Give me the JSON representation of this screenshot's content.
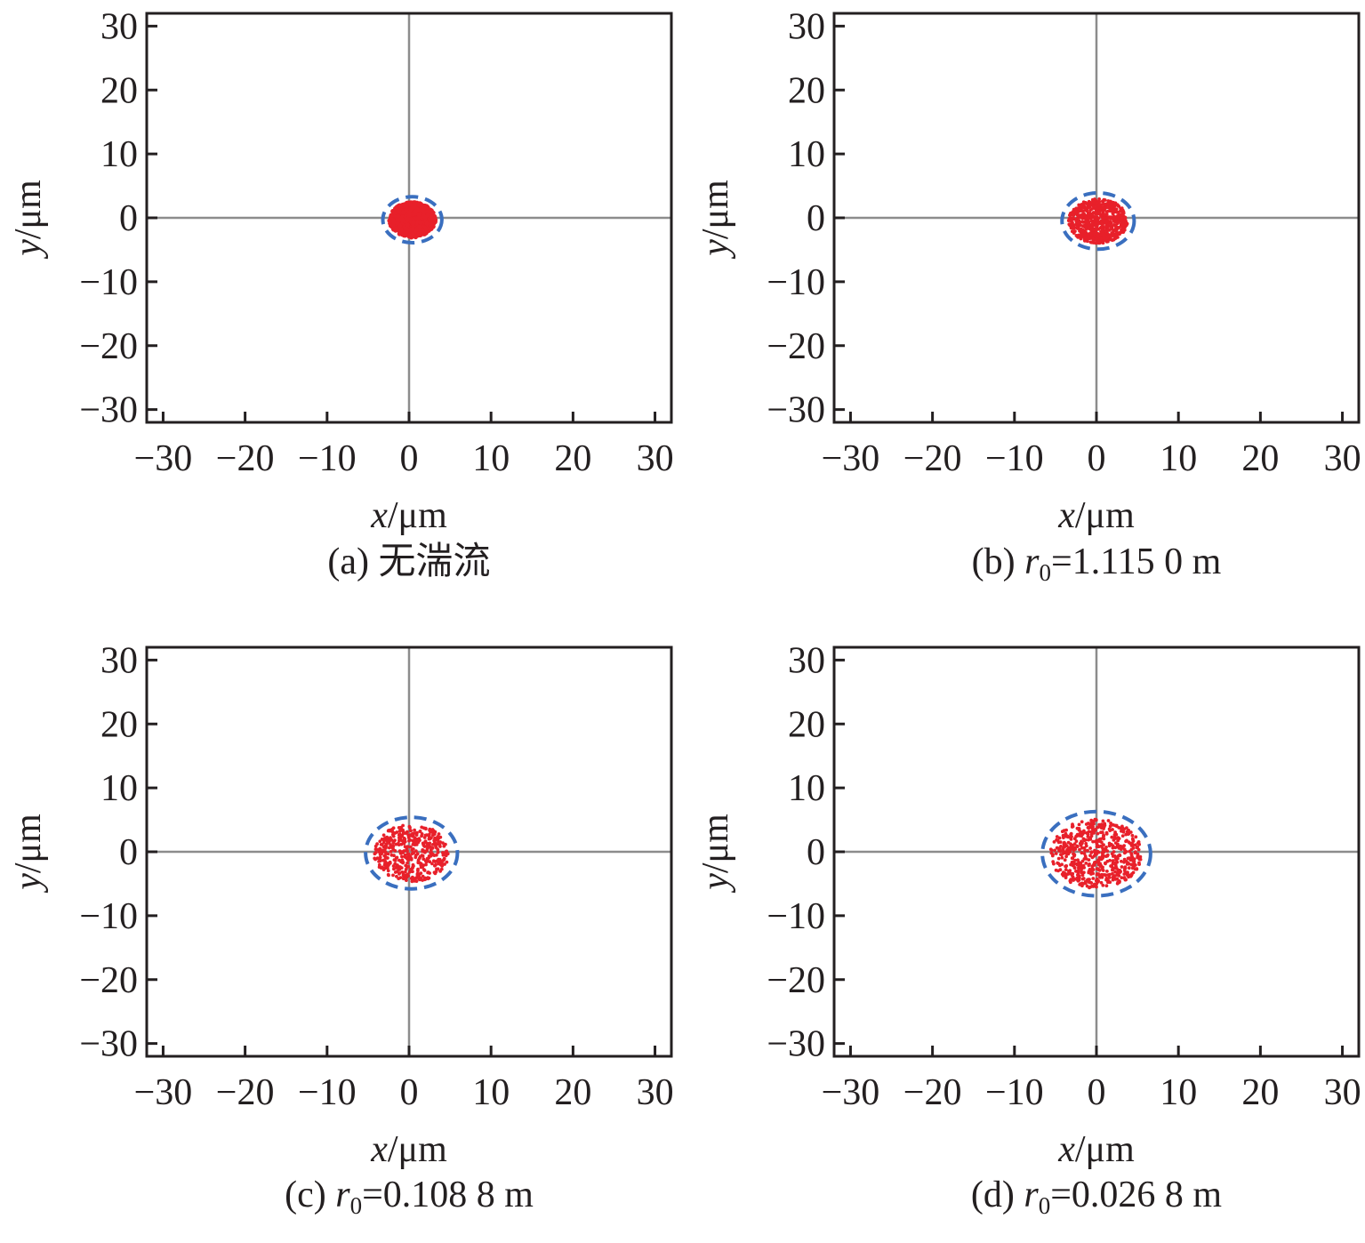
{
  "chart_data": [
    {
      "type": "scatter",
      "panel": "a",
      "caption": {
        "letter": "(a) ",
        "text": "无湍流",
        "r0": ""
      },
      "xlabel": {
        "var": "x",
        "unit": "/μm"
      },
      "ylabel": {
        "var": "y",
        "unit": "/μm"
      },
      "xlim": [
        -32,
        32
      ],
      "ylim": [
        -32,
        32
      ],
      "xticks": [
        -30,
        -20,
        -10,
        0,
        10,
        20,
        30
      ],
      "yticks": [
        -30,
        -20,
        -10,
        0,
        10,
        20,
        30
      ],
      "spot_center": [
        0.4,
        -0.3
      ],
      "spot_radius": 2.8,
      "circle_radius": 3.6,
      "point_count": 900,
      "dot_color": "#e8202a",
      "circle_color": "#3a6fbf"
    },
    {
      "type": "scatter",
      "panel": "b",
      "caption": {
        "letter": "(b) ",
        "text": "",
        "r0": "=1.115 0 m"
      },
      "xlabel": {
        "var": "x",
        "unit": "/μm"
      },
      "ylabel": {
        "var": "y",
        "unit": "/μm"
      },
      "xlim": [
        -32,
        32
      ],
      "ylim": [
        -32,
        32
      ],
      "xticks": [
        -30,
        -20,
        -10,
        0,
        10,
        20,
        30
      ],
      "yticks": [
        -30,
        -20,
        -10,
        0,
        10,
        20,
        30
      ],
      "spot_center": [
        0.2,
        -0.5
      ],
      "spot_radius": 3.6,
      "circle_radius": 4.4,
      "point_count": 700,
      "dot_color": "#e8202a",
      "circle_color": "#3a6fbf"
    },
    {
      "type": "scatter",
      "panel": "c",
      "caption": {
        "letter": "(c) ",
        "text": "",
        "r0": "=0.108 8 m"
      },
      "xlabel": {
        "var": "x",
        "unit": "/μm"
      },
      "ylabel": {
        "var": "y",
        "unit": "/μm"
      },
      "xlim": [
        -32,
        32
      ],
      "ylim": [
        -32,
        32
      ],
      "xticks": [
        -30,
        -20,
        -10,
        0,
        10,
        20,
        30
      ],
      "yticks": [
        -30,
        -20,
        -10,
        0,
        10,
        20,
        30
      ],
      "spot_center": [
        0.3,
        -0.2
      ],
      "spot_radius": 4.6,
      "circle_radius": 5.6,
      "point_count": 450,
      "dot_color": "#e8202a",
      "circle_color": "#3a6fbf"
    },
    {
      "type": "scatter",
      "panel": "d",
      "caption": {
        "letter": "(d) ",
        "text": "",
        "r0": "=0.026 8 m"
      },
      "xlabel": {
        "var": "x",
        "unit": "/μm"
      },
      "ylabel": {
        "var": "y",
        "unit": "/μm"
      },
      "xlim": [
        -32,
        32
      ],
      "ylim": [
        -32,
        32
      ],
      "xticks": [
        -30,
        -20,
        -10,
        0,
        10,
        20,
        30
      ],
      "yticks": [
        -30,
        -20,
        -10,
        0,
        10,
        20,
        30
      ],
      "spot_center": [
        0.0,
        -0.3
      ],
      "spot_radius": 5.6,
      "circle_radius": 6.6,
      "point_count": 600,
      "dot_color": "#e8202a",
      "circle_color": "#3a6fbf"
    }
  ]
}
